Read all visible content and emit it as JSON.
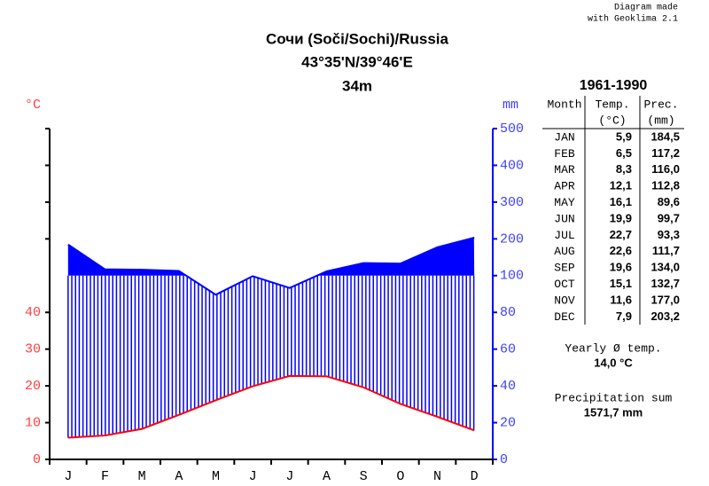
{
  "credit": [
    "Diagram made",
    "with Geoklima 2.1"
  ],
  "chart_data": {
    "type": "climate",
    "title": [
      "Сочи (Soči/Sochi)/Russia",
      "43°35'N/39°46'E",
      "34m"
    ],
    "categories": [
      "J",
      "F",
      "M",
      "A",
      "M",
      "J",
      "J",
      "A",
      "S",
      "O",
      "N",
      "D"
    ],
    "series": [
      {
        "name": "Temp.",
        "color": "#ff0000",
        "values": [
          5.9,
          6.5,
          8.3,
          12.1,
          16.1,
          19.9,
          22.7,
          22.6,
          19.6,
          15.1,
          11.6,
          7.9
        ]
      },
      {
        "name": "Prec.",
        "color": "#0000ff",
        "axis": "y2",
        "values": [
          184.5,
          117.2,
          116.0,
          112.8,
          89.6,
          99.7,
          93.3,
          111.7,
          134.0,
          132.7,
          177.0,
          203.2
        ]
      }
    ],
    "ylabel": "°C",
    "y2label": "mm",
    "ylim": [
      0,
      90
    ],
    "yticks": [
      0,
      10,
      20,
      30,
      40
    ],
    "y2lim": [
      0,
      500
    ],
    "y2ticks": [
      0,
      20,
      40,
      60,
      80,
      100,
      200,
      300,
      400,
      500
    ]
  },
  "table": {
    "period": "1961-1990",
    "header": [
      [
        "Month",
        "Temp.",
        "Prec."
      ],
      [
        "",
        "(°C)",
        "(mm)"
      ]
    ],
    "rows": [
      [
        "JAN",
        "5,9",
        "184,5"
      ],
      [
        "FEB",
        "6,5",
        "117,2"
      ],
      [
        "MAR",
        "8,3",
        "116,0"
      ],
      [
        "APR",
        "12,1",
        "112,8"
      ],
      [
        "MAY",
        "16,1",
        "89,6"
      ],
      [
        "JUN",
        "19,9",
        "99,7"
      ],
      [
        "JUL",
        "22,7",
        "93,3"
      ],
      [
        "AUG",
        "22,6",
        "111,7"
      ],
      [
        "SEP",
        "19,6",
        "134,0"
      ],
      [
        "OCT",
        "15,1",
        "132,7"
      ],
      [
        "NOV",
        "11,6",
        "177,0"
      ],
      [
        "DEC",
        "7,9",
        "203,2"
      ]
    ]
  },
  "summary": {
    "temp_label": "Yearly Ø temp.",
    "temp": "14,0 °C",
    "prec_label": "Precipitation sum",
    "prec": "1571,7 mm"
  }
}
